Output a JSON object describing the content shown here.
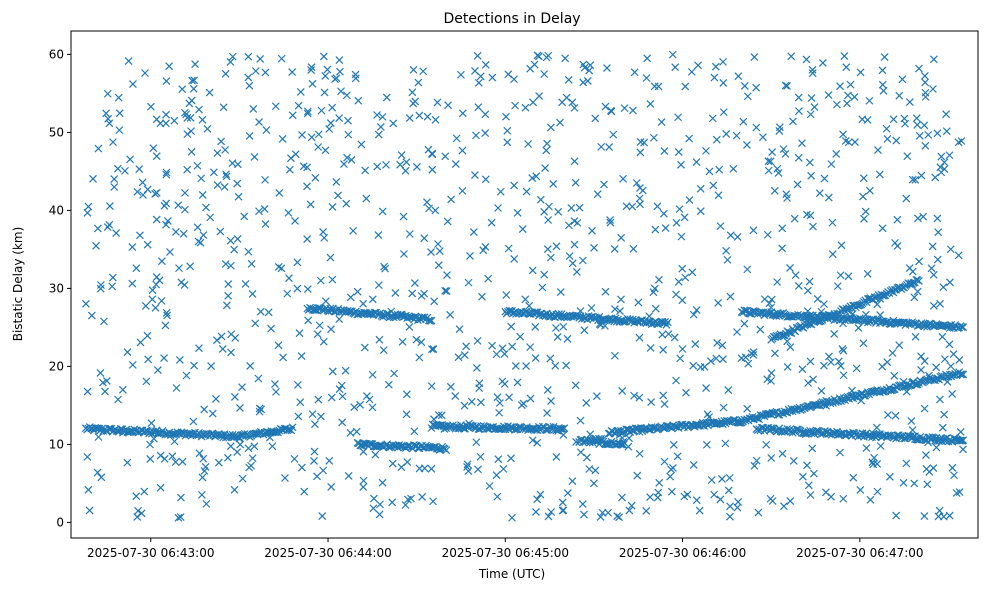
{
  "chart_data": {
    "type": "scatter",
    "title": "Detections in Delay",
    "xlabel": "Time (UTC)",
    "ylabel": "Bistatic Delay (km)",
    "x_ticks": [
      "2025-07-30 06:43:00",
      "2025-07-30 06:44:00",
      "2025-07-30 06:45:00",
      "2025-07-30 06:46:00",
      "2025-07-30 06:47:00"
    ],
    "y_ticks": [
      0,
      10,
      20,
      30,
      40,
      50,
      60
    ],
    "xlim": [
      "2025-07-30 06:42:33",
      "2025-07-30 06:47:40"
    ],
    "ylim": [
      -2,
      63
    ],
    "marker": "x",
    "color": "#1f77b4",
    "grid": false,
    "series": [
      {
        "label_note": "",
        "tracks": [
          {
            "x": [
              "2025-07-30 06:42:38",
              "2025-07-30 06:43:30"
            ],
            "y": [
              12.0,
              11.0
            ]
          },
          {
            "x": [
              "2025-07-30 06:43:30",
              "2025-07-30 06:43:48"
            ],
            "y": [
              11.0,
              12.0
            ]
          },
          {
            "x": [
              "2025-07-30 06:43:53",
              "2025-07-30 06:44:35"
            ],
            "y": [
              27.5,
              26.0
            ]
          },
          {
            "x": [
              "2025-07-30 06:44:10",
              "2025-07-30 06:44:40"
            ],
            "y": [
              10.0,
              9.5
            ]
          },
          {
            "x": [
              "2025-07-30 06:44:35",
              "2025-07-30 06:45:20"
            ],
            "y": [
              12.3,
              12.0
            ]
          },
          {
            "x": [
              "2025-07-30 06:45:00",
              "2025-07-30 06:45:55"
            ],
            "y": [
              27.0,
              25.5
            ]
          },
          {
            "x": [
              "2025-07-30 06:45:25",
              "2025-07-30 06:45:40"
            ],
            "y": [
              10.5,
              10.0
            ]
          },
          {
            "x": [
              "2025-07-30 06:45:35",
              "2025-07-30 06:46:20"
            ],
            "y": [
              11.5,
              13.0
            ]
          },
          {
            "x": [
              "2025-07-30 06:46:20",
              "2025-07-30 06:47:35"
            ],
            "y": [
              13.0,
              19.2
            ]
          },
          {
            "x": [
              "2025-07-30 06:46:20",
              "2025-07-30 06:47:35"
            ],
            "y": [
              27.0,
              25.0
            ]
          },
          {
            "x": [
              "2025-07-30 06:46:30",
              "2025-07-30 06:47:20"
            ],
            "y": [
              23.5,
              31.0
            ]
          },
          {
            "x": [
              "2025-07-30 06:46:25",
              "2025-07-30 06:47:35"
            ],
            "y": [
              12.0,
              10.5
            ]
          }
        ],
        "noise_points_x_range": [
          "2025-07-30 06:42:38",
          "2025-07-30 06:47:35"
        ],
        "noise_points_y_range": [
          0.5,
          60
        ]
      }
    ]
  }
}
